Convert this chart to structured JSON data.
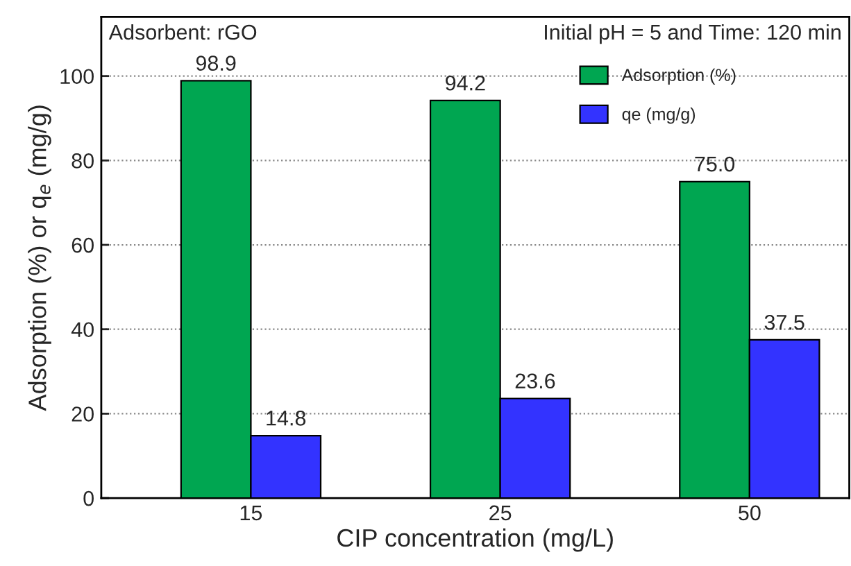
{
  "chart_data": {
    "type": "bar",
    "xlabel": "CIP concentration (mg/L)",
    "ylabel": "Adsorption (%) or q$_{e}$ (mg/g)",
    "categories": [
      "15",
      "25",
      "50"
    ],
    "series": [
      {
        "name": "Adsorption (%)",
        "color": "#00a651",
        "values": [
          98.9,
          94.2,
          75.0
        ],
        "value_labels": [
          "98.9",
          "94.2",
          "75.0"
        ]
      },
      {
        "name": "qe (mg/g)",
        "color": "#3333ff",
        "values": [
          14.8,
          23.6,
          37.5
        ],
        "value_labels": [
          "14.8",
          "23.6",
          "37.5"
        ]
      }
    ],
    "ylim": [
      0,
      114
    ],
    "yticks": [
      0,
      20,
      40,
      60,
      80,
      100
    ],
    "grid": "y",
    "legend": "top right",
    "annotations": [
      "Adsorbent: rGO",
      "Initial pH = 5 and Time: 120 min"
    ]
  }
}
